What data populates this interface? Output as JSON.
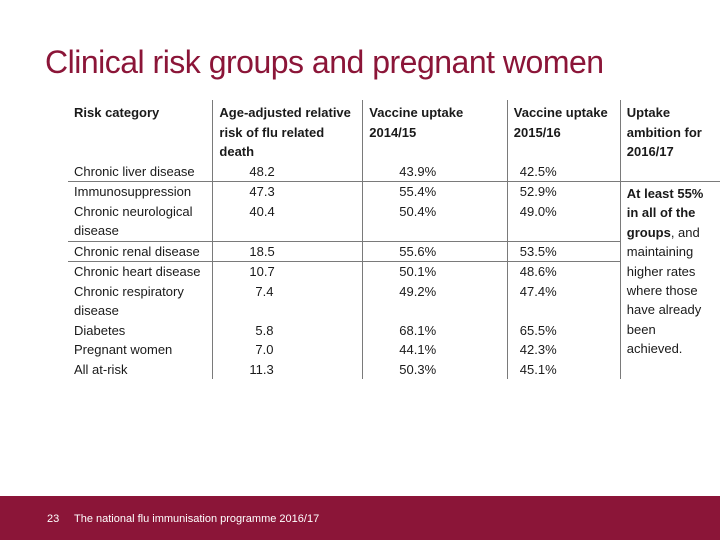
{
  "slide": {
    "title": "Clinical risk groups and pregnant women"
  },
  "table": {
    "headers": {
      "risk_category": "Risk category",
      "relative_risk": "Age-adjusted relative risk of flu related death",
      "uptake_2014": "Vaccine uptake 2014/15",
      "uptake_2015": "Vaccine uptake 2015/16",
      "ambition": "Uptake ambition for 2016/17"
    },
    "rows": [
      {
        "category": "Chronic liver disease",
        "rr": "48.2",
        "u14": "43.9%",
        "u15": "42.5%"
      },
      {
        "category": "Immunosuppression",
        "rr": "47.3",
        "u14": "55.4%",
        "u15": "52.9%"
      },
      {
        "category": "Chronic neurological disease",
        "rr": "40.4",
        "u14": "50.4%",
        "u15": "49.0%"
      },
      {
        "category": "Chronic renal disease",
        "rr": "18.5",
        "u14": "55.6%",
        "u15": "53.5%"
      },
      {
        "category": "Chronic heart disease",
        "rr": "10.7",
        "u14": "50.1%",
        "u15": "48.6%"
      },
      {
        "category": "Chronic respiratory disease",
        "rr": "7.4",
        "u14": "49.2%",
        "u15": "47.4%"
      },
      {
        "category": "Diabetes",
        "rr": "5.8",
        "u14": "68.1%",
        "u15": "65.5%"
      },
      {
        "category": "Pregnant women",
        "rr": "7.0",
        "u14": "44.1%",
        "u15": "42.3%"
      },
      {
        "category": "All at-risk",
        "rr": "11.3",
        "u14": "50.3%",
        "u15": "45.1%"
      }
    ],
    "ambition": {
      "highlight": "At least 55% in all of the groups",
      "rest": ", and maintaining higher rates where those have already been achieved."
    }
  },
  "footer": {
    "page_number": "23",
    "text": "The national flu immunisation programme 2016/17"
  }
}
